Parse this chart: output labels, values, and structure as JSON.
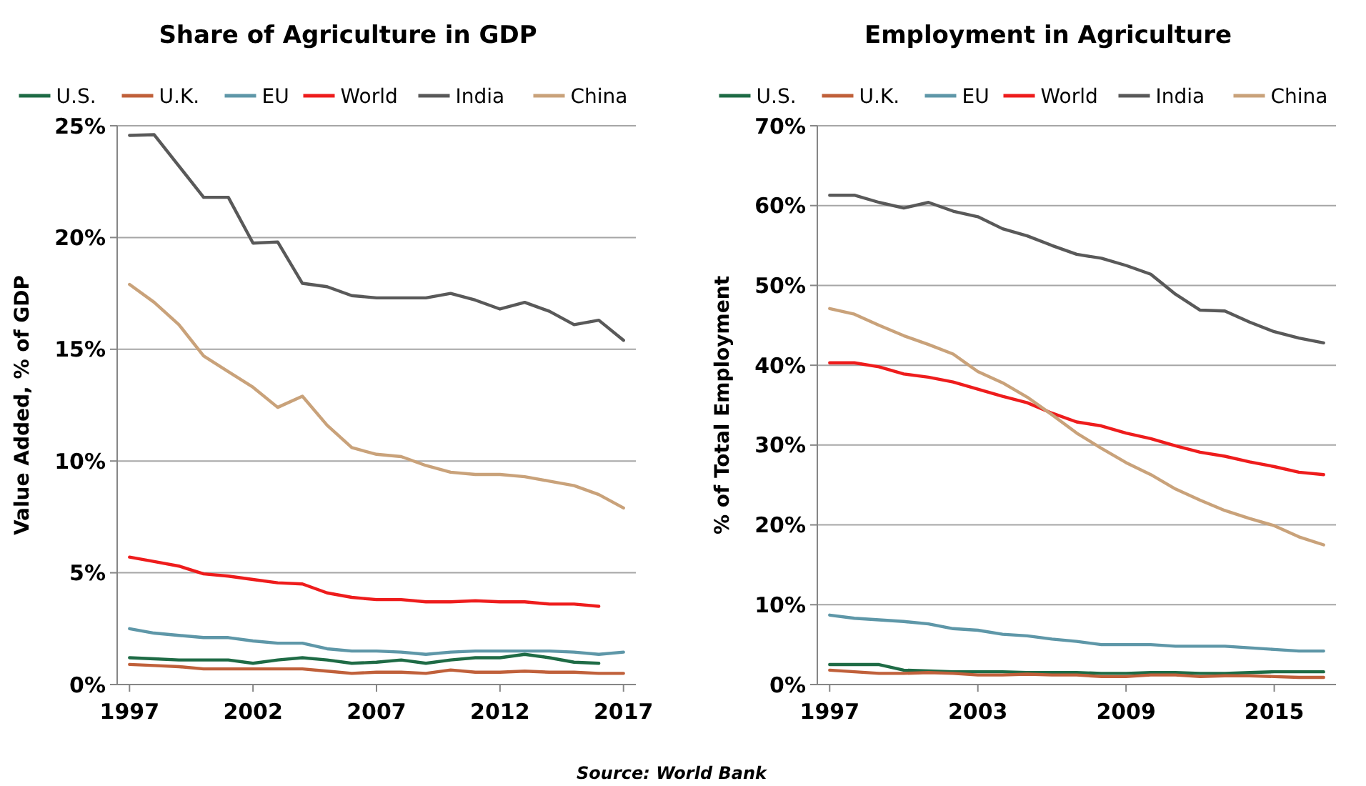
{
  "chart_data": [
    {
      "type": "line",
      "title": "Share of Agriculture in GDP",
      "ylabel": "Value Added, % of GDP",
      "x": [
        1997,
        1998,
        1999,
        2000,
        2001,
        2002,
        2003,
        2004,
        2005,
        2006,
        2007,
        2008,
        2009,
        2010,
        2011,
        2012,
        2013,
        2014,
        2015,
        2016,
        2017
      ],
      "xlim": [
        1996.5,
        2017.5
      ],
      "xticks": [
        1997,
        2002,
        2007,
        2012,
        2017
      ],
      "ylim": [
        0,
        25
      ],
      "yticks": [
        {
          "value": 0,
          "label": "0%"
        },
        {
          "value": 5,
          "label": "5%"
        },
        {
          "value": 10,
          "label": "10%"
        },
        {
          "value": 15,
          "label": "15%"
        },
        {
          "value": 20,
          "label": "20%"
        },
        {
          "value": 25,
          "label": "25%"
        }
      ],
      "grid": "y",
      "legend": "top",
      "marker": "none",
      "line_style": "solid",
      "series": [
        {
          "name": "U.S.",
          "color": "#1e6b45",
          "values": [
            1.2,
            1.15,
            1.1,
            1.1,
            1.1,
            0.95,
            1.1,
            1.2,
            1.1,
            0.95,
            1.0,
            1.1,
            0.95,
            1.1,
            1.2,
            1.2,
            1.35,
            1.2,
            1.0,
            0.95,
            null
          ]
        },
        {
          "name": "U.K.",
          "color": "#c0603a",
          "values": [
            0.9,
            0.85,
            0.8,
            0.7,
            0.7,
            0.7,
            0.7,
            0.7,
            0.6,
            0.5,
            0.55,
            0.55,
            0.5,
            0.65,
            0.55,
            0.55,
            0.6,
            0.55,
            0.55,
            0.5,
            0.5
          ]
        },
        {
          "name": "EU",
          "color": "#5e97a8",
          "values": [
            2.5,
            2.3,
            2.2,
            2.1,
            2.1,
            1.95,
            1.85,
            1.85,
            1.6,
            1.5,
            1.5,
            1.45,
            1.35,
            1.45,
            1.5,
            1.5,
            1.5,
            1.5,
            1.45,
            1.35,
            1.45
          ]
        },
        {
          "name": "World",
          "color": "#ee1c1c",
          "values": [
            5.7,
            5.5,
            5.3,
            4.95,
            4.85,
            4.7,
            4.55,
            4.5,
            4.1,
            3.9,
            3.8,
            3.8,
            3.7,
            3.7,
            3.75,
            3.7,
            3.7,
            3.6,
            3.6,
            3.5,
            null
          ]
        },
        {
          "name": "India",
          "color": "#595959",
          "values": [
            24.57,
            24.6,
            23.2,
            21.8,
            21.8,
            19.75,
            19.8,
            17.95,
            17.8,
            17.4,
            17.3,
            17.3,
            17.3,
            17.5,
            17.2,
            16.8,
            17.1,
            16.7,
            16.1,
            16.3,
            15.4
          ]
        },
        {
          "name": "China",
          "color": "#c9a27a",
          "values": [
            17.9,
            17.1,
            16.1,
            14.7,
            14.0,
            13.3,
            12.4,
            12.9,
            11.6,
            10.6,
            10.3,
            10.2,
            9.8,
            9.5,
            9.4,
            9.4,
            9.3,
            9.1,
            8.9,
            8.5,
            7.9
          ]
        }
      ],
      "annotations": [
        "Source: World Bank"
      ]
    },
    {
      "type": "line",
      "title": "Employment in Agriculture",
      "ylabel": "% of Total Employment",
      "x": [
        1997,
        1998,
        1999,
        2000,
        2001,
        2002,
        2003,
        2004,
        2005,
        2006,
        2007,
        2008,
        2009,
        2010,
        2011,
        2012,
        2013,
        2014,
        2015,
        2016,
        2017
      ],
      "xlim": [
        1996.5,
        2017.5
      ],
      "xticks": [
        1997,
        2003,
        2009,
        2015
      ],
      "ylim": [
        0,
        70
      ],
      "yticks": [
        {
          "value": 0,
          "label": "0%"
        },
        {
          "value": 10,
          "label": "10%"
        },
        {
          "value": 20,
          "label": "20%"
        },
        {
          "value": 30,
          "label": "30%"
        },
        {
          "value": 40,
          "label": "40%"
        },
        {
          "value": 50,
          "label": "50%"
        },
        {
          "value": 60,
          "label": "60%"
        },
        {
          "value": 70,
          "label": "70%"
        }
      ],
      "grid": "y",
      "legend": "top",
      "marker": "none",
      "line_style": "solid",
      "series": [
        {
          "name": "U.S.",
          "color": "#1e6b45",
          "values": [
            2.5,
            2.5,
            2.5,
            1.8,
            1.7,
            1.6,
            1.6,
            1.6,
            1.5,
            1.5,
            1.5,
            1.4,
            1.4,
            1.5,
            1.5,
            1.4,
            1.4,
            1.5,
            1.6,
            1.6,
            1.6
          ]
        },
        {
          "name": "U.K.",
          "color": "#c0603a",
          "values": [
            1.8,
            1.6,
            1.4,
            1.4,
            1.5,
            1.4,
            1.2,
            1.2,
            1.3,
            1.2,
            1.2,
            1.0,
            1.0,
            1.2,
            1.2,
            1.0,
            1.1,
            1.1,
            1.0,
            0.9,
            0.9
          ]
        },
        {
          "name": "EU",
          "color": "#5e97a8",
          "values": [
            8.7,
            8.3,
            8.1,
            7.9,
            7.6,
            7.0,
            6.8,
            6.3,
            6.1,
            5.7,
            5.4,
            5.0,
            5.0,
            5.0,
            4.8,
            4.8,
            4.8,
            4.6,
            4.4,
            4.2,
            4.2
          ]
        },
        {
          "name": "World",
          "color": "#ee1c1c",
          "values": [
            40.3,
            40.3,
            39.8,
            38.9,
            38.5,
            37.9,
            37.0,
            36.1,
            35.3,
            34.0,
            32.9,
            32.4,
            31.5,
            30.8,
            29.9,
            29.1,
            28.6,
            27.9,
            27.3,
            26.6,
            26.3
          ]
        },
        {
          "name": "India",
          "color": "#595959",
          "values": [
            61.3,
            61.3,
            60.4,
            59.7,
            60.4,
            59.3,
            58.6,
            57.1,
            56.2,
            55.0,
            53.9,
            53.4,
            52.5,
            51.4,
            48.9,
            46.9,
            46.8,
            45.4,
            44.2,
            43.4,
            42.8
          ]
        },
        {
          "name": "China",
          "color": "#c9a27a",
          "values": [
            47.1,
            46.4,
            45.0,
            43.7,
            42.6,
            41.4,
            39.2,
            37.8,
            36.0,
            33.8,
            31.5,
            29.6,
            27.8,
            26.3,
            24.5,
            23.1,
            21.8,
            20.8,
            19.9,
            18.5,
            17.5
          ]
        }
      ]
    }
  ]
}
